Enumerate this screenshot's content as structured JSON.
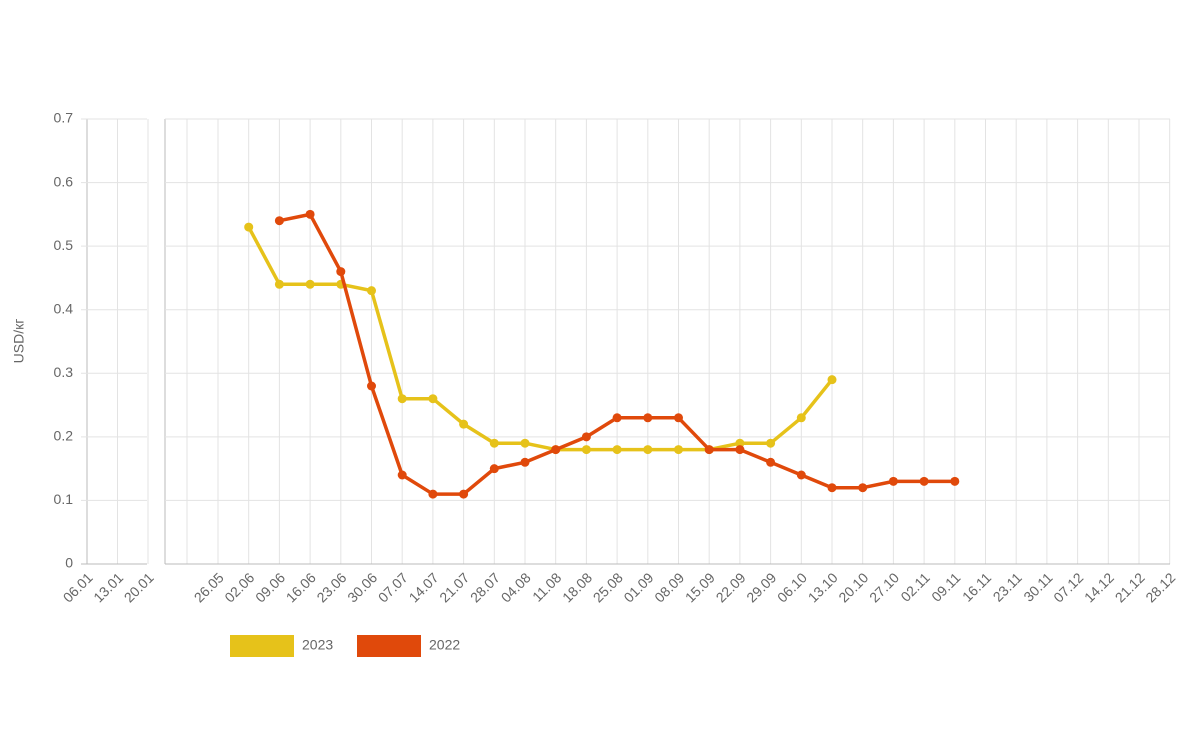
{
  "chart_data": {
    "type": "line",
    "y_label": "USD/кг",
    "categories": [
      "06.01",
      "13.01",
      "20.01",
      "26.05",
      "02.06",
      "09.06",
      "16.06",
      "23.06",
      "30.06",
      "07.07",
      "14.07",
      "21.07",
      "28.07",
      "04.08",
      "11.08",
      "18.08",
      "25.08",
      "01.09",
      "08.09",
      "15.09",
      "22.09",
      "29.09",
      "06.10",
      "13.10",
      "20.10",
      "27.10",
      "02.11",
      "09.11",
      "16.11",
      "23.11",
      "30.11",
      "07.12",
      "14.12",
      "21.12",
      "28.12"
    ],
    "series": [
      {
        "name": "2023",
        "color": "#e6c21a",
        "values": [
          null,
          null,
          null,
          null,
          0.53,
          0.44,
          0.44,
          0.44,
          0.43,
          0.26,
          0.26,
          0.22,
          0.19,
          0.19,
          0.18,
          0.18,
          0.18,
          0.18,
          0.18,
          0.18,
          0.19,
          0.19,
          0.23,
          0.29,
          null,
          null,
          null,
          null,
          null,
          null,
          null,
          null,
          null,
          null,
          null
        ]
      },
      {
        "name": "2022",
        "color": "#e0490b",
        "values": [
          null,
          null,
          null,
          null,
          null,
          0.54,
          0.55,
          0.46,
          0.28,
          0.14,
          0.11,
          0.11,
          0.15,
          0.16,
          0.18,
          0.2,
          0.23,
          0.23,
          0.23,
          0.18,
          0.18,
          0.16,
          0.14,
          0.12,
          0.12,
          0.13,
          0.13,
          0.13,
          null,
          null,
          null,
          null,
          null,
          null,
          null
        ]
      }
    ],
    "ylim": [
      0,
      0.7
    ],
    "yticks": [
      0,
      0.1,
      0.2,
      0.3,
      0.4,
      0.5,
      0.6,
      0.7
    ],
    "grid": true,
    "legend": "bottom-left"
  }
}
